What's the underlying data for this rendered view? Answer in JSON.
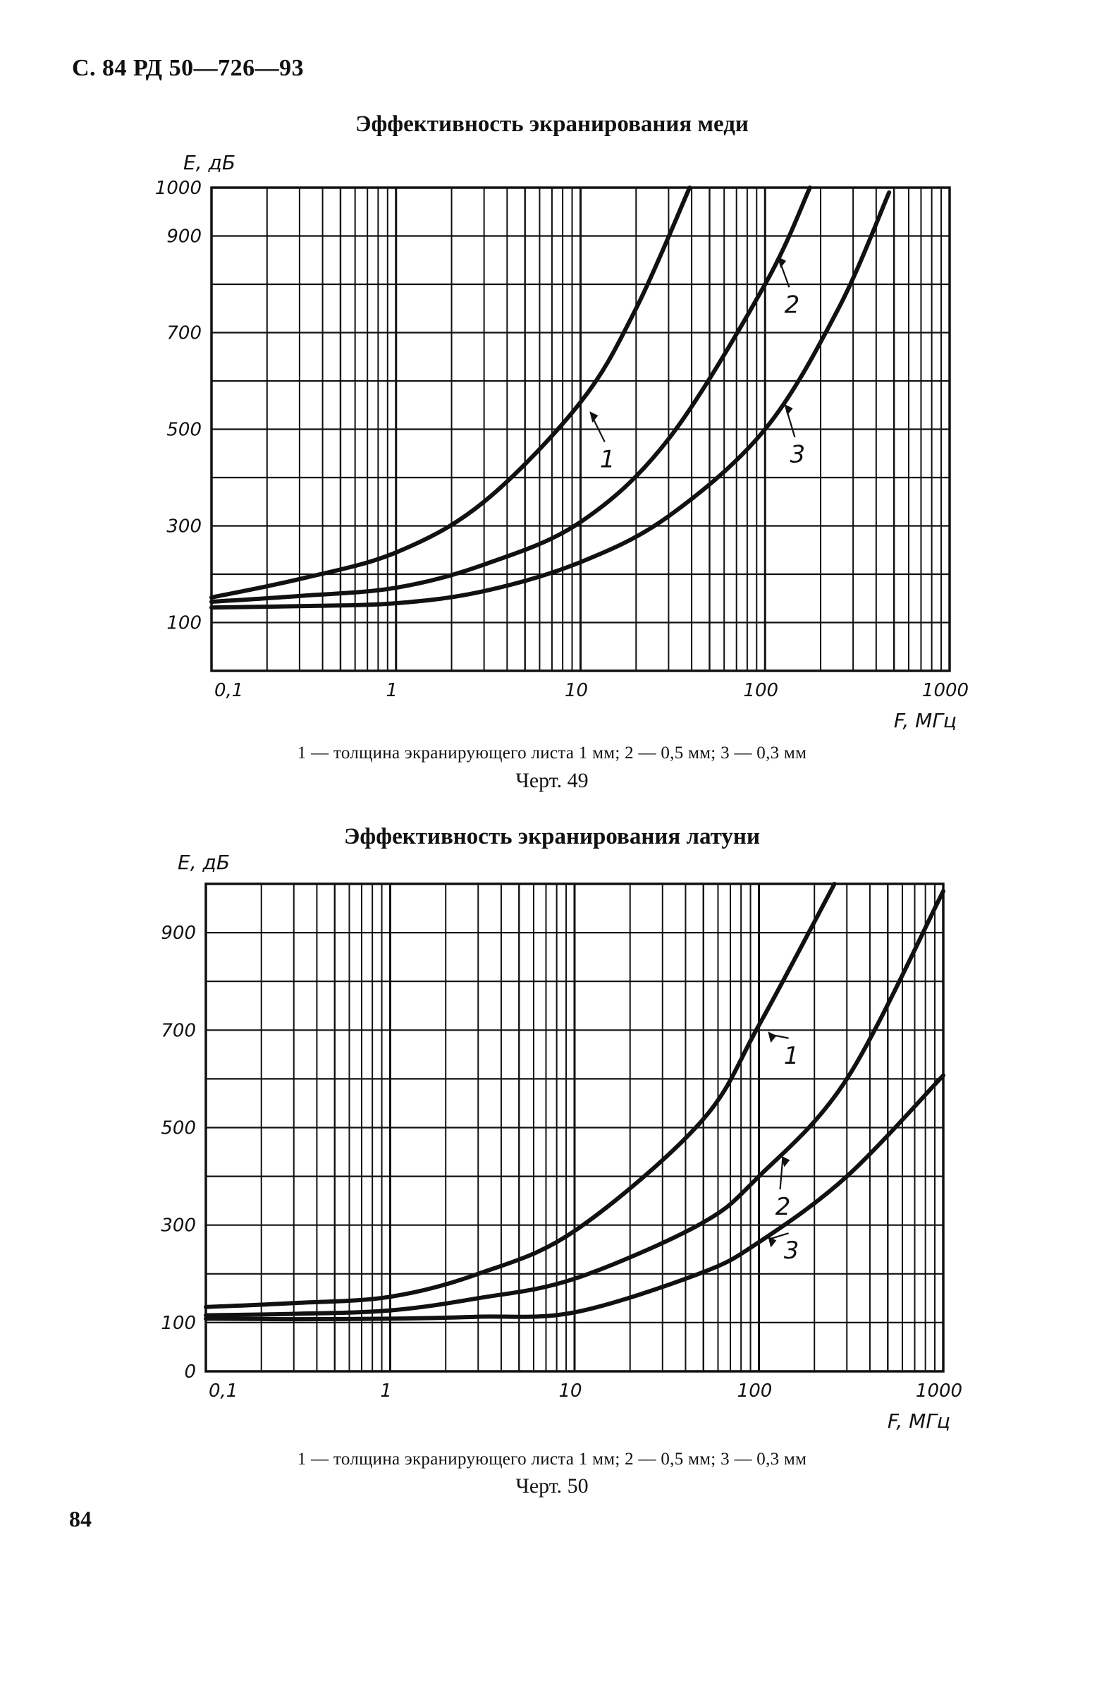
{
  "page": {
    "header": "С. 84 РД 50—726—93",
    "page_number": "84"
  },
  "figures": [
    {
      "title": "Эффективность экранирования меди",
      "legend_text": "1 — толщина экранирующего листа 1 мм; 2 — 0,5 мм; 3 — 0,3 мм",
      "caption": "Черт. 49"
    },
    {
      "title": "Эффективность экранирования латуни",
      "legend_text": "1 — толщина экранирующего листа 1 мм;  2 — 0,5 мм;  3 — 0,3 мм",
      "caption": "Черт. 50"
    }
  ],
  "chart_data": [
    {
      "type": "line",
      "title": "Эффективность экранирования меди",
      "caption": "Черт. 49",
      "xlabel": "F, МГц",
      "ylabel": "E, дБ",
      "xscale": "log",
      "xlim": [
        0.1,
        1000
      ],
      "ylim": [
        0,
        1000
      ],
      "x_ticks": [
        "0,1",
        "1",
        "10",
        "100",
        "1000"
      ],
      "y_ticks": [
        "100",
        "300",
        "500",
        "700",
        "900",
        "1000"
      ],
      "grid": true,
      "series": [
        {
          "name": "1 — 1 мм",
          "label": "1",
          "x": [
            0.1,
            0.3,
            1,
            3,
            10,
            20,
            39
          ],
          "y": [
            152,
            190,
            245,
            350,
            556,
            750,
            1000
          ]
        },
        {
          "name": "2 — 0,5 мм",
          "label": "2",
          "x": [
            0.1,
            0.3,
            1,
            3,
            10,
            30,
            100,
            175
          ],
          "y": [
            143,
            155,
            172,
            220,
            308,
            480,
            800,
            1000
          ]
        },
        {
          "name": "3 — 0,3 мм",
          "label": "3",
          "x": [
            0.1,
            0.3,
            1,
            3,
            10,
            30,
            100,
            250,
            470
          ],
          "y": [
            131,
            134,
            140,
            165,
            225,
            320,
            500,
            750,
            990
          ]
        }
      ],
      "annotations": [
        {
          "text": "1",
          "series": 0,
          "at_x": 11,
          "at_y": 540,
          "label_x": 14,
          "label_y": 430
        },
        {
          "text": "2",
          "series": 1,
          "at_x": 115,
          "at_y": 860,
          "label_x": 140,
          "label_y": 750
        },
        {
          "text": "3",
          "series": 2,
          "at_x": 125,
          "at_y": 555,
          "label_x": 150,
          "label_y": 440
        }
      ]
    },
    {
      "type": "line",
      "title": "Эффективность экранирования латуни",
      "caption": "Черт. 50",
      "xlabel": "F, МГц",
      "ylabel": "E, дБ",
      "xscale": "log",
      "xlim": [
        0.1,
        1000
      ],
      "ylim": [
        0,
        1000
      ],
      "x_ticks": [
        "0,1",
        "1",
        "10",
        "100",
        "1000"
      ],
      "y_ticks": [
        "0",
        "100",
        "300",
        "500",
        "700",
        "900"
      ],
      "grid": true,
      "series": [
        {
          "name": "1 — 1 мм",
          "label": "1",
          "x": [
            0.1,
            0.3,
            1,
            3,
            10,
            48,
            100,
            257
          ],
          "y": [
            132,
            140,
            153,
            200,
            288,
            510,
            710,
            1000
          ]
        },
        {
          "name": "2 — 0,5 мм",
          "label": "2",
          "x": [
            0.1,
            0.3,
            1,
            3,
            10,
            48,
            100,
            300,
            1000
          ],
          "y": [
            115,
            118,
            125,
            150,
            190,
            302,
            400,
            600,
            985
          ]
        },
        {
          "name": "3 — 0,3 мм",
          "label": "3",
          "x": [
            0.1,
            0.3,
            1,
            3,
            10,
            48,
            100,
            300,
            1000
          ],
          "y": [
            108,
            107,
            108,
            112,
            121,
            201,
            265,
            400,
            607
          ]
        }
      ],
      "annotations": [
        {
          "text": "1",
          "series": 0,
          "at_x": 110,
          "at_y": 700,
          "label_x": 150,
          "label_y": 640
        },
        {
          "text": "2",
          "series": 1,
          "at_x": 130,
          "at_y": 445,
          "label_x": 135,
          "label_y": 330
        },
        {
          "text": "3",
          "series": 2,
          "at_x": 110,
          "at_y": 280,
          "label_x": 150,
          "label_y": 240
        }
      ]
    }
  ],
  "colors": {
    "ink": "#111111",
    "paper": "#ffffff"
  }
}
